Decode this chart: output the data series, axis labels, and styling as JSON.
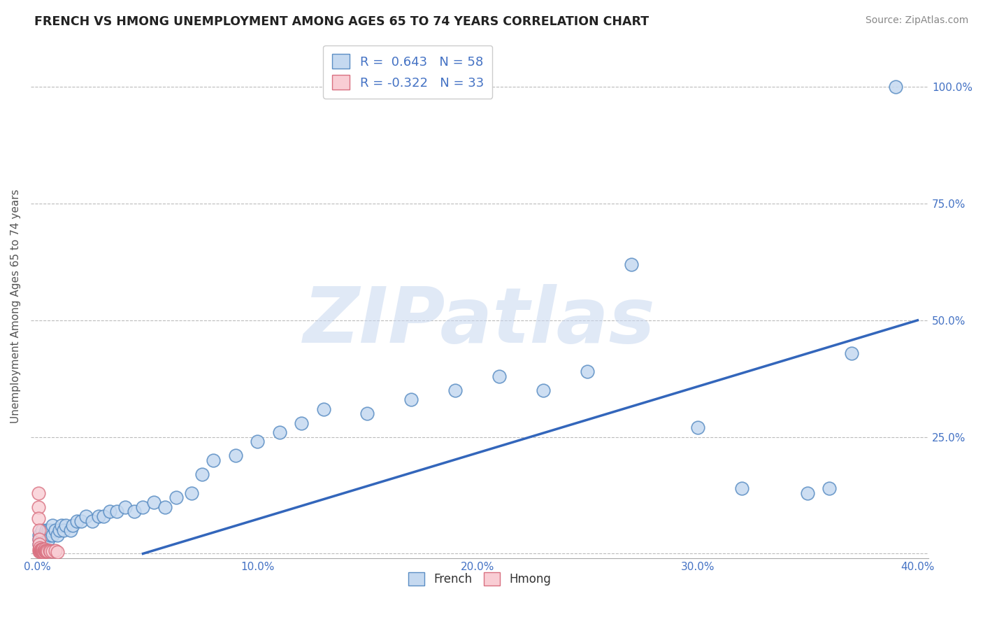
{
  "title": "FRENCH VS HMONG UNEMPLOYMENT AMONG AGES 65 TO 74 YEARS CORRELATION CHART",
  "source": "Source: ZipAtlas.com",
  "watermark": "ZIPatlas",
  "legend_french_r": "0.643",
  "legend_french_n": "58",
  "legend_hmong_r": "-0.322",
  "legend_hmong_n": "33",
  "french_color": "#c5d9f0",
  "french_edge_color": "#5b8ec4",
  "hmong_color": "#f9cdd4",
  "hmong_edge_color": "#d97080",
  "trendline_color": "#3366bb",
  "background_color": "#ffffff",
  "grid_color": "#bbbbbb",
  "title_color": "#222222",
  "axis_label_color": "#4472C4",
  "legend_text_color": "#4472C4",
  "french_x": [
    0.001,
    0.001,
    0.001,
    0.002,
    0.002,
    0.003,
    0.003,
    0.004,
    0.004,
    0.005,
    0.005,
    0.006,
    0.006,
    0.007,
    0.007,
    0.008,
    0.009,
    0.01,
    0.011,
    0.012,
    0.013,
    0.015,
    0.016,
    0.018,
    0.02,
    0.022,
    0.025,
    0.028,
    0.03,
    0.033,
    0.036,
    0.04,
    0.044,
    0.048,
    0.053,
    0.058,
    0.063,
    0.07,
    0.075,
    0.08,
    0.09,
    0.1,
    0.11,
    0.12,
    0.13,
    0.15,
    0.17,
    0.19,
    0.21,
    0.23,
    0.25,
    0.27,
    0.3,
    0.32,
    0.35,
    0.36,
    0.37,
    0.39
  ],
  "french_y": [
    0.02,
    0.03,
    0.04,
    0.03,
    0.05,
    0.03,
    0.04,
    0.04,
    0.05,
    0.03,
    0.05,
    0.04,
    0.05,
    0.04,
    0.06,
    0.05,
    0.04,
    0.05,
    0.06,
    0.05,
    0.06,
    0.05,
    0.06,
    0.07,
    0.07,
    0.08,
    0.07,
    0.08,
    0.08,
    0.09,
    0.09,
    0.1,
    0.09,
    0.1,
    0.11,
    0.1,
    0.12,
    0.13,
    0.17,
    0.2,
    0.21,
    0.24,
    0.26,
    0.28,
    0.31,
    0.3,
    0.33,
    0.35,
    0.38,
    0.35,
    0.39,
    0.62,
    0.27,
    0.14,
    0.13,
    0.14,
    0.43,
    1.0
  ],
  "hmong_x": [
    0.0005,
    0.0005,
    0.0005,
    0.0007,
    0.0007,
    0.001,
    0.001,
    0.001,
    0.0012,
    0.0012,
    0.0015,
    0.0015,
    0.0017,
    0.0017,
    0.002,
    0.002,
    0.0022,
    0.0025,
    0.0025,
    0.0028,
    0.003,
    0.0033,
    0.0033,
    0.0036,
    0.0036,
    0.004,
    0.0044,
    0.0048,
    0.0055,
    0.006,
    0.007,
    0.008,
    0.009
  ],
  "hmong_y": [
    0.13,
    0.1,
    0.075,
    0.05,
    0.03,
    0.005,
    0.01,
    0.02,
    0.005,
    0.012,
    0.004,
    0.008,
    0.005,
    0.01,
    0.004,
    0.008,
    0.006,
    0.005,
    0.01,
    0.005,
    0.004,
    0.006,
    0.01,
    0.005,
    0.007,
    0.005,
    0.006,
    0.005,
    0.007,
    0.005,
    0.005,
    0.006,
    0.004
  ],
  "trendline_x": [
    0.048,
    0.4
  ],
  "trendline_y": [
    0.0,
    0.5
  ],
  "xlim": [
    -0.003,
    0.405
  ],
  "ylim": [
    -0.01,
    1.07
  ],
  "yticks": [
    0.0,
    0.25,
    0.5,
    0.75,
    1.0
  ],
  "ytick_labels": [
    "",
    "25.0%",
    "50.0%",
    "75.0%",
    "100.0%"
  ],
  "xticks": [
    0.0,
    0.1,
    0.2,
    0.3,
    0.4
  ],
  "xtick_labels": [
    "0.0%",
    "10.0%",
    "20.0%",
    "30.0%",
    "40.0%"
  ]
}
